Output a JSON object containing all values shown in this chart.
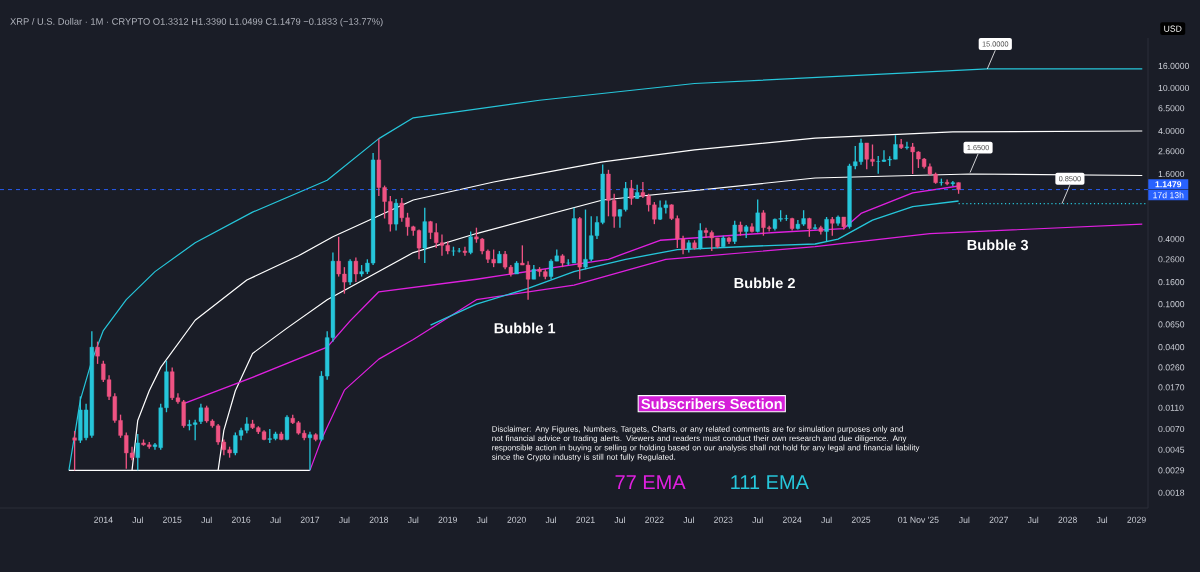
{
  "chart_data": {
    "type": "candlestick",
    "title": "XRP / U.S. Dollar · 1M · CRYPTO  O1.3312 H1.3390 L1.0499 C1.1479 −0.1833 (−13.77%)",
    "ylabel": "USD",
    "log": "y",
    "legend": "bottom",
    "colors": [
      "#ef5383",
      "#26c6da",
      "#26c6da",
      "#26c6da",
      "#ef5383",
      "#ef5383",
      "#ef5383",
      "#ef5383",
      "#ef5383",
      "#ef5383",
      "#ef5383",
      "#26c6da",
      "#ef5383",
      "#ef5383",
      "#26c6da",
      "#26c6da",
      "#26c6da",
      "#ef5383",
      "#ef5383",
      "#ef5383",
      "#26c6da",
      "#26c6da",
      "#26c6da",
      "#ef5383",
      "#ef5383",
      "#ef5383",
      "#ef5383",
      "#ef5383",
      "#26c6da",
      "#26c6da",
      "#26c6da",
      "#ef5383",
      "#ef5383",
      "#ef5383",
      "#26c6da",
      "#26c6da",
      "#ef5383",
      "#26c6da",
      "#ef5383",
      "#ef5383",
      "#ef5383",
      "#26c6da",
      "#ef5383",
      "#26c6da",
      "#26c6da",
      "#26c6da",
      "#ef5383",
      "#ef5383",
      "#26c6da",
      "#ef5383",
      "#26c6da",
      "#26c6da",
      "#26c6da",
      "#ef5383",
      "#ef5383",
      "#ef5383",
      "#26c6da",
      "#ef5383",
      "#ef5383",
      "#ef5383",
      "#ef5383",
      "#26c6da",
      "#ef5383",
      "#ef5383",
      "#ef5383",
      "#ef5383",
      "#26c6da",
      "#26c6da",
      "#ef5383",
      "#26c6da",
      "#ef5383",
      "#ef5383",
      "#ef5383",
      "#ef5383",
      "#26c6da",
      "#ef5383",
      "#ef5383",
      "#26c6da",
      "#ef5383",
      "#ef5383",
      "#26c6da",
      "#ef5383",
      "#ef5383",
      "#26c6da",
      "#26c6da",
      "#ef5383",
      "#26c6da",
      "#26c6da",
      "#ef5383",
      "#26c6da",
      "#26c6da",
      "#26c6da",
      "#26c6da",
      "#ef5383",
      "#ef5383",
      "#26c6da",
      "#26c6da",
      "#ef5383",
      "#26c6da",
      "#ef5383",
      "#ef5383",
      "#ef5383",
      "#26c6da",
      "#26c6da",
      "#ef5383",
      "#ef5383",
      "#ef5383",
      "#26c6da",
      "#ef5383",
      "#26c6da",
      "#ef5383",
      "#ef5383",
      "#ef5383",
      "#26c6da",
      "#ef5383",
      "#26c6da",
      "#ef5383",
      "#26c6da",
      "#ef5383",
      "#26c6da",
      "#ef5383",
      "#ef5383",
      "#26c6da",
      "#26c6da",
      "#26c6da",
      "#ef5383",
      "#26c6da",
      "#26c6da",
      "#ef5383",
      "#26c6da",
      "#ef5383",
      "#26c6da",
      "#ef5383",
      "#26c6da",
      "#ef5383",
      "#26c6da",
      "#26c6da",
      "#26c6da",
      "#ef5383",
      "#ef5383",
      "#26c6da",
      "#26c6da",
      "#26c6da",
      "#26c6da",
      "#ef5383",
      "#26c6da",
      "#ef5383",
      "#ef5383",
      "#ef5383",
      "#ef5383",
      "#ef5383",
      "#26c6da",
      "#ef5383",
      "#26c6da",
      "#ef5383"
    ],
    "xlim": [
      "2012-07",
      "2029-03"
    ],
    "ylim": [
      0.0013,
      29
    ],
    "xticks": [
      {
        "value": "2014-01",
        "label": "2014"
      },
      {
        "value": "2014-07",
        "label": "Jul"
      },
      {
        "value": "2015-01",
        "label": "2015"
      },
      {
        "value": "2015-07",
        "label": "Jul"
      },
      {
        "value": "2016-01",
        "label": "2016"
      },
      {
        "value": "2016-07",
        "label": "Jul"
      },
      {
        "value": "2017-01",
        "label": "2017"
      },
      {
        "value": "2017-07",
        "label": "Jul"
      },
      {
        "value": "2018-01",
        "label": "2018"
      },
      {
        "value": "2018-07",
        "label": "Jul"
      },
      {
        "value": "2019-01",
        "label": "2019"
      },
      {
        "value": "2019-07",
        "label": "Jul"
      },
      {
        "value": "2020-01",
        "label": "2020"
      },
      {
        "value": "2020-07",
        "label": "Jul"
      },
      {
        "value": "2021-01",
        "label": "2021"
      },
      {
        "value": "2021-07",
        "label": "Jul"
      },
      {
        "value": "2022-01",
        "label": "2022"
      },
      {
        "value": "2022-07",
        "label": "Jul"
      },
      {
        "value": "2023-01",
        "label": "2023"
      },
      {
        "value": "2023-07",
        "label": "Jul"
      },
      {
        "value": "2024-01",
        "label": "2024"
      },
      {
        "value": "2024-07",
        "label": "Jul"
      },
      {
        "value": "2025-01",
        "label": "2025"
      },
      {
        "value": "2025-11",
        "label": "01 Nov '25"
      },
      {
        "value": "2026-07",
        "label": "Jul"
      },
      {
        "value": "2027-01",
        "label": "2027"
      },
      {
        "value": "2027-07",
        "label": "Jul"
      },
      {
        "value": "2028-01",
        "label": "2028"
      },
      {
        "value": "2028-07",
        "label": "Jul"
      },
      {
        "value": "2029-01",
        "label": "2029"
      }
    ],
    "yticks": [
      {
        "value": 0.0018,
        "label": "0.0018"
      },
      {
        "value": 0.0029,
        "label": "0.0029"
      },
      {
        "value": 0.0045,
        "label": "0.0045"
      },
      {
        "value": 0.007,
        "label": "0.0070"
      },
      {
        "value": 0.011,
        "label": "0.0110"
      },
      {
        "value": 0.017,
        "label": "0.0170"
      },
      {
        "value": 0.026,
        "label": "0.0260"
      },
      {
        "value": 0.04,
        "label": "0.0400"
      },
      {
        "value": 0.065,
        "label": "0.0650"
      },
      {
        "value": 0.1,
        "label": "0.1000"
      },
      {
        "value": 0.16,
        "label": "0.1600"
      },
      {
        "value": 0.26,
        "label": "0.2600"
      },
      {
        "value": 0.4,
        "label": "0.4000"
      },
      {
        "value": 1.6,
        "label": "1.6000"
      },
      {
        "value": 2.6,
        "label": "2.6000"
      },
      {
        "value": 4,
        "label": "4.0000"
      },
      {
        "value": 6.5,
        "label": "6.5000"
      },
      {
        "value": 10,
        "label": "10.0000"
      },
      {
        "value": 16,
        "label": "16.0000"
      }
    ],
    "x": [
      "2013-08",
      "2013-09",
      "2013-10",
      "2013-11",
      "2013-12",
      "2014-01",
      "2014-02",
      "2014-03",
      "2014-04",
      "2014-05",
      "2014-06",
      "2014-07",
      "2014-08",
      "2014-09",
      "2014-10",
      "2014-11",
      "2014-12",
      "2015-01",
      "2015-02",
      "2015-03",
      "2015-04",
      "2015-05",
      "2015-06",
      "2015-07",
      "2015-08",
      "2015-09",
      "2015-10",
      "2015-11",
      "2015-12",
      "2016-01",
      "2016-02",
      "2016-03",
      "2016-04",
      "2016-05",
      "2016-06",
      "2016-07",
      "2016-08",
      "2016-09",
      "2016-10",
      "2016-11",
      "2016-12",
      "2017-01",
      "2017-02",
      "2017-03",
      "2017-04",
      "2017-05",
      "2017-06",
      "2017-07",
      "2017-08",
      "2017-09",
      "2017-10",
      "2017-11",
      "2017-12",
      "2018-01",
      "2018-02",
      "2018-03",
      "2018-04",
      "2018-05",
      "2018-06",
      "2018-07",
      "2018-08",
      "2018-09",
      "2018-10",
      "2018-11",
      "2018-12",
      "2019-01",
      "2019-02",
      "2019-03",
      "2019-04",
      "2019-05",
      "2019-06",
      "2019-07",
      "2019-08",
      "2019-09",
      "2019-10",
      "2019-11",
      "2019-12",
      "2020-01",
      "2020-02",
      "2020-03",
      "2020-04",
      "2020-05",
      "2020-06",
      "2020-07",
      "2020-08",
      "2020-09",
      "2020-10",
      "2020-11",
      "2020-12",
      "2021-01",
      "2021-02",
      "2021-03",
      "2021-04",
      "2021-05",
      "2021-06",
      "2021-07",
      "2021-08",
      "2021-09",
      "2021-10",
      "2021-11",
      "2021-12",
      "2022-01",
      "2022-02",
      "2022-03",
      "2022-04",
      "2022-05",
      "2022-06",
      "2022-07",
      "2022-08",
      "2022-09",
      "2022-10",
      "2022-11",
      "2022-12",
      "2023-01",
      "2023-02",
      "2023-03",
      "2023-04",
      "2023-05",
      "2023-06",
      "2023-07",
      "2023-08",
      "2023-09",
      "2023-10",
      "2023-11",
      "2023-12",
      "2024-01",
      "2024-02",
      "2024-03",
      "2024-04",
      "2024-05",
      "2024-06",
      "2024-07",
      "2024-08",
      "2024-09",
      "2024-10",
      "2024-11",
      "2024-12",
      "2025-01",
      "2025-02",
      "2025-03",
      "2025-04",
      "2025-05",
      "2025-06",
      "2025-07",
      "2025-08",
      "2025-09",
      "2025-10",
      "2025-11",
      "2025-12",
      "2026-01",
      "2026-02",
      "2026-03",
      "2026-04",
      "2026-05",
      "2026-06"
    ],
    "ohlc": [
      [
        0.0058,
        0.0067,
        0.0029,
        0.0055
      ],
      [
        0.0055,
        0.014,
        0.0052,
        0.0105
      ],
      [
        0.0058,
        0.012,
        0.0055,
        0.0105
      ],
      [
        0.0061,
        0.056,
        0.0058,
        0.04
      ],
      [
        0.04,
        0.045,
        0.028,
        0.033
      ],
      [
        0.028,
        0.03,
        0.019,
        0.02
      ],
      [
        0.02,
        0.022,
        0.013,
        0.014
      ],
      [
        0.014,
        0.015,
        0.008,
        0.0084
      ],
      [
        0.0084,
        0.0095,
        0.0058,
        0.0061
      ],
      [
        0.0061,
        0.0065,
        0.003,
        0.0042
      ],
      [
        0.0042,
        0.0048,
        0.0036,
        0.0038
      ],
      [
        0.0038,
        0.0063,
        0.0029,
        0.0052
      ],
      [
        0.0052,
        0.0056,
        0.0049,
        0.005
      ],
      [
        0.005,
        0.0053,
        0.0046,
        0.0048
      ],
      [
        0.0048,
        0.0052,
        0.0045,
        0.005
      ],
      [
        0.0047,
        0.012,
        0.0045,
        0.011
      ],
      [
        0.011,
        0.03,
        0.01,
        0.0237
      ],
      [
        0.0237,
        0.026,
        0.013,
        0.0136
      ],
      [
        0.0136,
        0.015,
        0.012,
        0.0125
      ],
      [
        0.0125,
        0.013,
        0.0072,
        0.0075
      ],
      [
        0.0075,
        0.0085,
        0.0068,
        0.0077
      ],
      [
        0.0077,
        0.0085,
        0.0055,
        0.008
      ],
      [
        0.0082,
        0.012,
        0.0078,
        0.011
      ],
      [
        0.011,
        0.0115,
        0.008,
        0.0083
      ],
      [
        0.0083,
        0.0086,
        0.0072,
        0.0075
      ],
      [
        0.0075,
        0.0078,
        0.005,
        0.0053
      ],
      [
        0.0053,
        0.0056,
        0.004,
        0.0045
      ],
      [
        0.0045,
        0.0048,
        0.0038,
        0.0042
      ],
      [
        0.0042,
        0.0065,
        0.004,
        0.0061
      ],
      [
        0.0061,
        0.0072,
        0.0055,
        0.0068
      ],
      [
        0.0068,
        0.009,
        0.0064,
        0.0078
      ],
      [
        0.0078,
        0.0085,
        0.007,
        0.0072
      ],
      [
        0.0072,
        0.0074,
        0.0063,
        0.0066
      ],
      [
        0.0066,
        0.0068,
        0.0055,
        0.0056
      ],
      [
        0.0056,
        0.007,
        0.0052,
        0.0057
      ],
      [
        0.0057,
        0.0066,
        0.0055,
        0.0063
      ],
      [
        0.0063,
        0.0066,
        0.0055,
        0.0056
      ],
      [
        0.0056,
        0.0094,
        0.0055,
        0.009
      ],
      [
        0.0088,
        0.0095,
        0.0078,
        0.008
      ],
      [
        0.008,
        0.0083,
        0.0062,
        0.0064
      ],
      [
        0.0064,
        0.0068,
        0.0055,
        0.0058
      ],
      [
        0.0058,
        0.0066,
        0.0029,
        0.0062
      ],
      [
        0.0062,
        0.0064,
        0.0054,
        0.0056
      ],
      [
        0.0056,
        0.024,
        0.0054,
        0.0216
      ],
      [
        0.0216,
        0.056,
        0.02,
        0.049
      ],
      [
        0.049,
        0.3,
        0.045,
        0.25
      ],
      [
        0.25,
        0.42,
        0.18,
        0.19
      ],
      [
        0.19,
        0.22,
        0.125,
        0.16
      ],
      [
        0.16,
        0.26,
        0.15,
        0.25
      ],
      [
        0.25,
        0.27,
        0.16,
        0.19
      ],
      [
        0.19,
        0.23,
        0.18,
        0.2
      ],
      [
        0.2,
        0.26,
        0.19,
        0.24
      ],
      [
        0.24,
        2.5,
        0.23,
        2.16
      ],
      [
        2.16,
        3.4,
        1.0,
        1.2
      ],
      [
        1.2,
        1.25,
        0.62,
        0.89
      ],
      [
        0.89,
        1.0,
        0.47,
        0.55
      ],
      [
        0.55,
        0.94,
        0.48,
        0.86
      ],
      [
        0.86,
        0.96,
        0.58,
        0.63
      ],
      [
        0.63,
        0.7,
        0.43,
        0.52
      ],
      [
        0.52,
        0.53,
        0.43,
        0.48
      ],
      [
        0.48,
        0.49,
        0.26,
        0.33
      ],
      [
        0.33,
        0.78,
        0.24,
        0.58
      ],
      [
        0.58,
        0.59,
        0.4,
        0.46
      ],
      [
        0.46,
        0.56,
        0.33,
        0.37
      ],
      [
        0.37,
        0.44,
        0.28,
        0.35
      ],
      [
        0.35,
        0.38,
        0.29,
        0.31
      ],
      [
        0.31,
        0.34,
        0.28,
        0.31
      ],
      [
        0.31,
        0.33,
        0.3,
        0.31
      ],
      [
        0.31,
        0.34,
        0.28,
        0.3
      ],
      [
        0.3,
        0.47,
        0.29,
        0.42
      ],
      [
        0.42,
        0.51,
        0.37,
        0.4
      ],
      [
        0.4,
        0.41,
        0.29,
        0.31
      ],
      [
        0.31,
        0.32,
        0.24,
        0.26
      ],
      [
        0.26,
        0.32,
        0.22,
        0.24
      ],
      [
        0.24,
        0.31,
        0.24,
        0.29
      ],
      [
        0.29,
        0.31,
        0.21,
        0.22
      ],
      [
        0.22,
        0.23,
        0.18,
        0.19
      ],
      [
        0.19,
        0.25,
        0.19,
        0.24
      ],
      [
        0.24,
        0.35,
        0.23,
        0.23
      ],
      [
        0.23,
        0.25,
        0.11,
        0.17
      ],
      [
        0.17,
        0.23,
        0.17,
        0.21
      ],
      [
        0.21,
        0.22,
        0.18,
        0.2
      ],
      [
        0.2,
        0.21,
        0.17,
        0.18
      ],
      [
        0.18,
        0.26,
        0.17,
        0.25
      ],
      [
        0.25,
        0.32,
        0.25,
        0.28
      ],
      [
        0.28,
        0.29,
        0.22,
        0.24
      ],
      [
        0.24,
        0.26,
        0.23,
        0.24
      ],
      [
        0.24,
        0.78,
        0.24,
        0.62
      ],
      [
        0.62,
        0.64,
        0.17,
        0.22
      ],
      [
        0.22,
        0.75,
        0.21,
        0.26
      ],
      [
        0.26,
        0.65,
        0.25,
        0.43
      ],
      [
        0.43,
        0.65,
        0.4,
        0.57
      ],
      [
        0.57,
        1.96,
        0.55,
        1.6
      ],
      [
        1.6,
        1.75,
        0.65,
        0.91
      ],
      [
        0.91,
        1.05,
        0.51,
        0.65
      ],
      [
        0.65,
        0.76,
        0.51,
        0.75
      ],
      [
        0.75,
        1.35,
        0.72,
        1.18
      ],
      [
        1.18,
        1.41,
        0.83,
        0.95
      ],
      [
        0.95,
        1.27,
        0.94,
        1.08
      ],
      [
        1.08,
        1.35,
        0.96,
        1.0
      ],
      [
        1.0,
        1.05,
        0.72,
        0.83
      ],
      [
        0.83,
        0.88,
        0.55,
        0.61
      ],
      [
        0.61,
        0.91,
        0.6,
        0.78
      ],
      [
        0.78,
        0.91,
        0.69,
        0.83
      ],
      [
        0.83,
        0.84,
        0.6,
        0.62
      ],
      [
        0.62,
        0.66,
        0.33,
        0.4
      ],
      [
        0.4,
        0.43,
        0.29,
        0.32
      ],
      [
        0.32,
        0.39,
        0.3,
        0.37
      ],
      [
        0.37,
        0.39,
        0.32,
        0.33
      ],
      [
        0.33,
        0.56,
        0.32,
        0.48
      ],
      [
        0.48,
        0.51,
        0.41,
        0.46
      ],
      [
        0.46,
        0.48,
        0.31,
        0.41
      ],
      [
        0.41,
        0.41,
        0.33,
        0.34
      ],
      [
        0.34,
        0.43,
        0.34,
        0.41
      ],
      [
        0.41,
        0.42,
        0.36,
        0.38
      ],
      [
        0.38,
        0.59,
        0.36,
        0.54
      ],
      [
        0.54,
        0.58,
        0.43,
        0.47
      ],
      [
        0.47,
        0.54,
        0.41,
        0.52
      ],
      [
        0.52,
        0.56,
        0.46,
        0.47
      ],
      [
        0.47,
        0.93,
        0.46,
        0.7
      ],
      [
        0.7,
        0.74,
        0.43,
        0.51
      ],
      [
        0.51,
        0.53,
        0.47,
        0.5
      ],
      [
        0.5,
        0.62,
        0.48,
        0.61
      ],
      [
        0.61,
        0.74,
        0.58,
        0.62
      ],
      [
        0.62,
        0.67,
        0.59,
        0.62
      ],
      [
        0.62,
        0.63,
        0.48,
        0.5
      ],
      [
        0.5,
        0.6,
        0.49,
        0.55
      ],
      [
        0.55,
        0.74,
        0.53,
        0.62
      ],
      [
        0.62,
        0.63,
        0.42,
        0.5
      ],
      [
        0.5,
        0.55,
        0.49,
        0.51
      ],
      [
        0.51,
        0.53,
        0.44,
        0.47
      ],
      [
        0.47,
        0.64,
        0.38,
        0.61
      ],
      [
        0.61,
        0.64,
        0.43,
        0.56
      ],
      [
        0.56,
        0.66,
        0.53,
        0.64
      ],
      [
        0.64,
        0.64,
        0.49,
        0.52
      ],
      [
        0.52,
        1.99,
        0.5,
        1.9
      ],
      [
        1.9,
        2.9,
        1.77,
        2.08
      ],
      [
        2.08,
        3.4,
        1.95,
        3.1
      ],
      [
        3.1,
        3.1,
        1.77,
        2.19
      ],
      [
        2.19,
        3.0,
        1.89,
        2.09
      ],
      [
        2.09,
        2.35,
        1.61,
        2.09
      ],
      [
        2.09,
        2.65,
        2.07,
        2.16
      ],
      [
        2.16,
        2.34,
        1.9,
        2.19
      ],
      [
        2.19,
        3.66,
        2.19,
        3.0
      ],
      [
        3.0,
        3.38,
        2.72,
        2.8
      ],
      [
        2.8,
        3.18,
        2.69,
        2.85
      ],
      [
        2.85,
        3.1,
        1.6,
        2.56
      ],
      [
        2.56,
        2.6,
        1.82,
        2.2
      ],
      [
        2.2,
        2.25,
        1.8,
        1.87
      ],
      [
        1.87,
        2.0,
        1.55,
        1.6
      ],
      [
        1.6,
        1.65,
        1.3,
        1.33
      ],
      [
        1.33,
        1.45,
        1.25,
        1.34
      ],
      [
        1.34,
        1.42,
        1.26,
        1.3
      ],
      [
        1.3,
        1.38,
        1.24,
        1.3312
      ],
      [
        1.3312,
        1.339,
        1.0499,
        1.1479
      ]
    ],
    "series": [
      {
        "type": "line",
        "color": "#26c6da",
        "x": [
          "2013-07",
          "2013-09",
          "2013-11",
          "2014-01",
          "2014-05",
          "2014-10",
          "2015-05",
          "2016-03",
          "2017-04",
          "2018-01",
          "2018-07",
          "2020-05",
          "2022-08",
          "2026-11",
          "2029-02"
        ],
        "values": [
          0.0029,
          0.013,
          0.03,
          0.057,
          0.11,
          0.2,
          0.37,
          0.71,
          1.4,
          3.4,
          5.3,
          7.7,
          11,
          15,
          15
        ]
      },
      {
        "type": "line",
        "color": "#ffffff",
        "x": [
          "2014-06",
          "2014-07",
          "2014-09",
          "2014-11",
          "2015-05",
          "2016-02",
          "2016-11",
          "2017-05",
          "2018-07",
          "2019-09",
          "2021-04",
          "2022-08",
          "2024-05",
          "2026-05",
          "2029-02"
        ],
        "values": [
          0.0029,
          0.0084,
          0.0158,
          0.026,
          0.071,
          0.167,
          0.28,
          0.42,
          0.92,
          1.35,
          2.07,
          2.67,
          3.44,
          3.92,
          4.0
        ]
      },
      {
        "type": "line",
        "color": "#ffffff",
        "x": [
          "2015-09",
          "2015-10",
          "2015-12",
          "2016-03",
          "2016-09",
          "2017-04",
          "2018-07",
          "2019-06",
          "2021-04",
          "2024-05",
          "2026-08",
          "2029-02"
        ],
        "values": [
          0.0029,
          0.0068,
          0.0158,
          0.035,
          0.06,
          0.11,
          0.3,
          0.45,
          0.92,
          1.47,
          1.6,
          1.55
        ]
      },
      {
        "type": "line",
        "color": "#ffffff",
        "x": [
          "2013-07",
          "2017-01"
        ],
        "values": [
          0.0029,
          0.0029
        ]
      },
      {
        "type": "line",
        "color": "#e020e0",
        "x": [
          "2017-01",
          "2017-03",
          "2017-07",
          "2018-01",
          "2018-07",
          "2019-06",
          "2020-11",
          "2022-03",
          "2024-05",
          "2026-01",
          "2029-02"
        ],
        "values": [
          0.0029,
          0.0056,
          0.016,
          0.031,
          0.047,
          0.11,
          0.15,
          0.26,
          0.34,
          0.45,
          0.55
        ]
      },
      {
        "name": "77 EMA",
        "type": "line",
        "color": "#e020e0",
        "x": [
          "2015-03",
          "2016-03",
          "2017-04",
          "2017-08",
          "2018-01",
          "2019-06",
          "2021-05",
          "2022-02",
          "2023-10",
          "2024-10",
          "2025-01",
          "2025-10",
          "2026-06"
        ],
        "values": [
          0.012,
          0.021,
          0.04,
          0.07,
          0.13,
          0.17,
          0.26,
          0.39,
          0.46,
          0.5,
          0.69,
          1.07,
          1.24
        ]
      },
      {
        "name": "111 EMA",
        "type": "line",
        "color": "#26c6da",
        "x": [
          "2018-10",
          "2019-06",
          "2020-03",
          "2020-11",
          "2021-08",
          "2022-05",
          "2023-04",
          "2023-10",
          "2024-05",
          "2024-09",
          "2025-03",
          "2025-10",
          "2026-06"
        ],
        "values": [
          0.064,
          0.1,
          0.14,
          0.2,
          0.26,
          0.32,
          0.34,
          0.35,
          0.36,
          0.4,
          0.6,
          0.8,
          0.9
        ]
      },
      {
        "type": "line",
        "color": "#26c6da",
        "line_style": "dotted",
        "x": [
          "2026-06",
          "2029-03"
        ],
        "values": [
          0.85,
          0.85
        ]
      }
    ],
    "ref_lines": [
      {
        "axis": "y",
        "value": 1.1479,
        "label": "1.1479",
        "color": "#2962ff",
        "line_style": "dashed"
      }
    ],
    "annotations": [
      "Bubble 1",
      "Bubble 2",
      "Bubble 3",
      {
        "text": "15.0000",
        "x": "2026-11",
        "y": 15
      },
      {
        "text": "1.6500",
        "x": "2026-08",
        "y": 1.65
      },
      {
        "text": "0.8500",
        "x": "2027-12",
        "y": 0.85
      },
      "17d 13h",
      "Subscribers Section",
      "Disclaimer: Any Figures, Numbers, Targets, Charts, or any related comments are for simulation purposes only and not financial advice or trading alerts. Viewers and readers must conduct their own research and due diligence. Any responsible action in buying or selling or holding based on our analysis shall not hold for any legal and financial liability since the Crypto industry is still not fully Regulated."
    ]
  }
}
